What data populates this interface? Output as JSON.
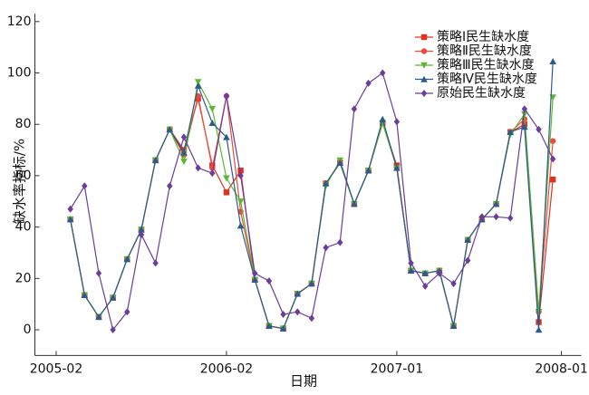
{
  "chart_data": {
    "type": "line",
    "x_label": "日期",
    "y_label": "缺水率指标/%",
    "x": [
      1,
      2,
      3,
      4,
      5,
      6,
      7,
      8,
      9,
      10,
      11,
      12,
      13,
      14,
      15,
      16,
      17,
      18,
      19,
      20,
      21,
      22,
      23,
      24,
      25,
      26,
      27,
      28,
      29,
      30,
      31,
      32,
      33,
      34,
      35
    ],
    "xlim": [
      -1.5,
      37
    ],
    "xticks": [
      {
        "value": 0,
        "label": "2005-02"
      },
      {
        "value": 12,
        "label": "2006-02"
      },
      {
        "value": 24,
        "label": "2007-01"
      },
      {
        "value": 35.6,
        "label": "2008-01"
      }
    ],
    "ylim": [
      -10,
      123
    ],
    "yticks": [
      0,
      20,
      40,
      60,
      80,
      100,
      120
    ],
    "legend": "upper right",
    "series": [
      {
        "name": "策略Ⅰ民生缺水度",
        "color": "#e0301e",
        "marker": "square",
        "values": [
          43,
          13.5,
          5,
          12.5,
          27.5,
          39,
          66,
          78,
          70,
          90,
          64,
          53.5,
          62,
          19.5,
          1.5,
          0.5,
          14,
          18,
          57,
          65,
          49,
          62,
          80.5,
          64,
          23,
          22,
          23,
          1.5,
          35,
          43,
          49,
          77,
          80,
          3,
          58.5
        ]
      },
      {
        "name": "策略Ⅱ民生缺水度",
        "color": "#ee4a3a",
        "marker": "circle",
        "values": [
          43,
          13.5,
          5,
          12.5,
          27.5,
          39,
          66,
          78,
          68,
          91,
          63,
          91,
          46,
          19.5,
          1.5,
          0.5,
          14,
          18,
          57,
          65,
          49,
          62,
          80.5,
          63,
          23,
          22,
          23,
          1.5,
          35,
          43,
          49,
          77,
          82,
          7,
          73.5
        ]
      },
      {
        "name": "策略Ⅲ民生缺水度",
        "color": "#5cb832",
        "marker": "triangle-down",
        "values": [
          43,
          13.5,
          5,
          12.5,
          27.5,
          39,
          66,
          78,
          65.5,
          96.5,
          86,
          59,
          50,
          19.5,
          1.5,
          0.5,
          14,
          18,
          56,
          66,
          49,
          62,
          80.5,
          63,
          23,
          22,
          23,
          1.5,
          35,
          43,
          49,
          76,
          84,
          7,
          90.5
        ]
      },
      {
        "name": "策略Ⅳ民生缺水度",
        "color": "#2a5b8c",
        "marker": "triangle-up",
        "values": [
          43,
          13.5,
          5,
          12.5,
          27.5,
          39,
          66,
          78,
          69,
          95,
          80.5,
          75,
          40.5,
          19.5,
          1.5,
          0.5,
          14,
          18,
          57,
          65,
          49,
          62,
          82,
          63,
          23,
          22,
          23,
          1.5,
          35,
          43,
          49,
          77,
          79,
          0,
          104.5
        ]
      },
      {
        "name": "原始民生缺水度",
        "color": "#6a3d9a",
        "marker": "diamond",
        "values": [
          47,
          56,
          22,
          0,
          7,
          37,
          26,
          56,
          75,
          63,
          61,
          91,
          60,
          22,
          19,
          6,
          7,
          4.5,
          32,
          34,
          86,
          96,
          100,
          81,
          26,
          17,
          22,
          18,
          27,
          44,
          44,
          43.5,
          86,
          78,
          66.5
        ]
      }
    ]
  }
}
